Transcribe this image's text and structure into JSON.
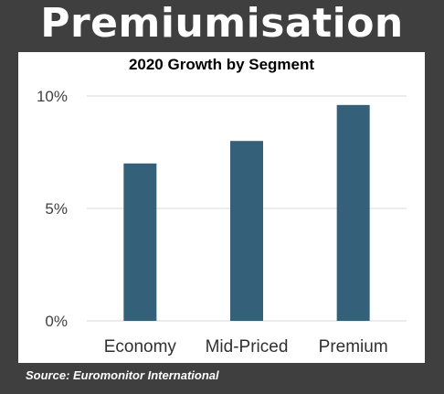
{
  "headline": "Premiumisation",
  "source": "Source: Euromonitor International",
  "chart_data": {
    "type": "bar",
    "title": "2020 Growth by Segment",
    "categories": [
      "Economy",
      "Mid-Priced",
      "Premium"
    ],
    "values": [
      7.0,
      8.0,
      9.6
    ],
    "ylim": [
      0,
      10
    ],
    "yticks": [
      0,
      5,
      10
    ],
    "ytick_labels": [
      "0%",
      "5%",
      "10%"
    ],
    "grid": true,
    "legend": "none",
    "bar_color": "#34607a",
    "grid_color": "#d9d9d9"
  }
}
